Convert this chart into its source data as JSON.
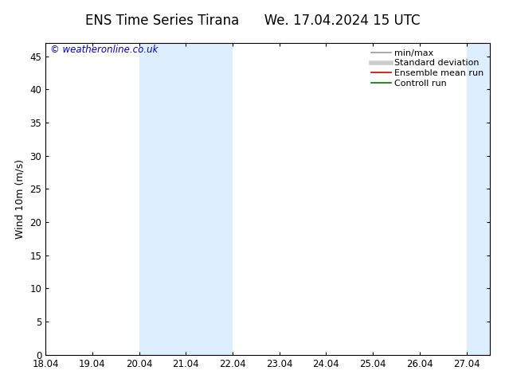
{
  "title": "ENS Time Series Tirana      We. 17.04.2024 15 UTC",
  "ylabel": "Wind 10m (m/s)",
  "watermark": "© weatheronline.co.uk",
  "watermark_color": "#0000bb",
  "xlim_start": 18.04,
  "xlim_end": 27.54,
  "ylim": [
    0,
    47.0
  ],
  "yticks": [
    0,
    5,
    10,
    15,
    20,
    25,
    30,
    35,
    40,
    45
  ],
  "xticks": [
    18.04,
    19.04,
    20.04,
    21.04,
    22.04,
    23.04,
    24.04,
    25.04,
    26.04,
    27.04
  ],
  "xtick_labels": [
    "18.04",
    "19.04",
    "20.04",
    "21.04",
    "22.04",
    "23.04",
    "24.04",
    "25.04",
    "26.04",
    "27.04"
  ],
  "shaded_bands": [
    {
      "x_start": 20.04,
      "x_end": 22.04
    },
    {
      "x_start": 27.04,
      "x_end": 27.54
    }
  ],
  "shade_color": "#ddeeff",
  "background_color": "#ffffff",
  "legend_items": [
    {
      "label": "min/max",
      "color": "#999999",
      "lw": 1.2
    },
    {
      "label": "Standard deviation",
      "color": "#cccccc",
      "lw": 4
    },
    {
      "label": "Ensemble mean run",
      "color": "#cc0000",
      "lw": 1.2
    },
    {
      "label": "Controll run",
      "color": "#007700",
      "lw": 1.2
    }
  ],
  "title_fontsize": 12,
  "tick_fontsize": 8.5,
  "ylabel_fontsize": 9,
  "watermark_fontsize": 8.5,
  "legend_fontsize": 8
}
